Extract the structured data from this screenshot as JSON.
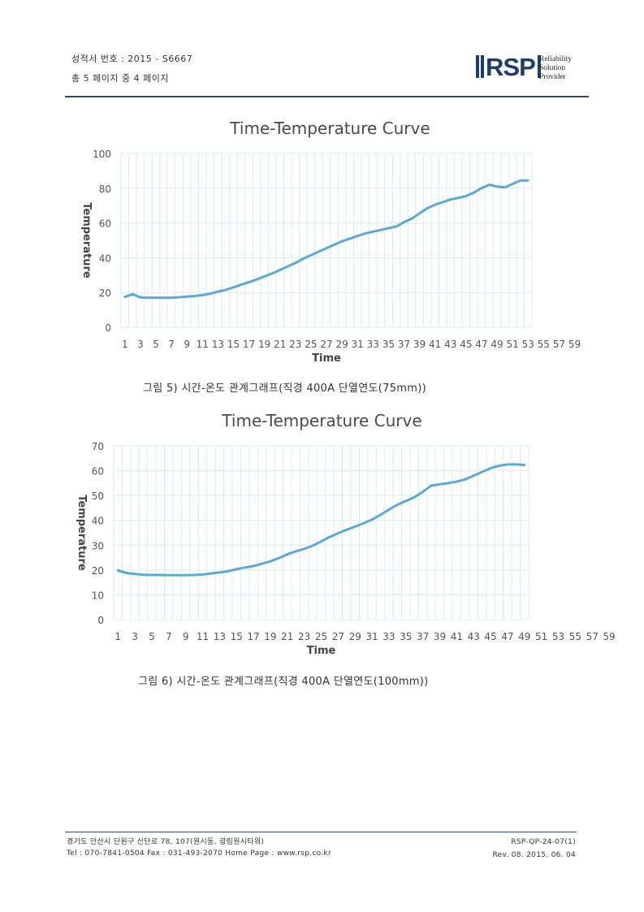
{
  "header": {
    "cert_number": "성적서 번호 : 2015 - S6667",
    "page_info": "총 5 페이지 중 4 페이지",
    "logo_mark": "RSP",
    "logo_lines": [
      "Reliability",
      "Solution",
      "Provider"
    ]
  },
  "captions": {
    "figure5": "그림 5) 시간-온도 관계그래프(직경 400A 단열연도(75mm))",
    "figure6": "그림 6) 시간-온도 관계그래프(직경 400A 단열연도(100mm))"
  },
  "footer": {
    "address": "경기도 안산시 단원구 산단로 78, 107(원시동, 광림원시타워)",
    "contact": "Tel : 070-7841-0504 Fax : 031-493-2070 Home Page : www.rsp.co.kr",
    "doc_code": "RSP-QP-24-07(1)",
    "revision": "Rev. 08. 2015. 06. 04"
  },
  "colors": {
    "line": "#5aaad6",
    "grid": "#dce9f2",
    "rule": "#2c4a78"
  },
  "chart_data": [
    {
      "type": "line",
      "title": "Time-Temperature Curve",
      "xlabel": "Time",
      "ylabel": "Temperature",
      "ylim": [
        0,
        100
      ],
      "yticks": [
        0,
        20,
        40,
        60,
        80,
        100
      ],
      "xticks": [
        1,
        3,
        5,
        7,
        9,
        11,
        13,
        15,
        17,
        19,
        21,
        23,
        25,
        27,
        29,
        31,
        33,
        35,
        37,
        39,
        41,
        43,
        45,
        47,
        49,
        51,
        53,
        55,
        57,
        59
      ],
      "grid": true,
      "x_start": 1,
      "values": [
        17.5,
        19,
        17.2,
        17,
        17,
        17,
        17,
        17.3,
        17.6,
        18,
        18.5,
        19.3,
        20.5,
        21.5,
        23,
        24.5,
        26,
        27.5,
        29.3,
        31,
        33,
        35,
        37,
        39.5,
        41.5,
        43.5,
        45.5,
        47.5,
        49.5,
        51,
        52.5,
        54,
        55,
        56,
        57,
        58,
        60.5,
        62.5,
        65.5,
        68.5,
        70.5,
        72,
        73.5,
        74.5,
        75.5,
        77.5,
        80,
        82,
        81,
        80.5,
        82.5,
        84.5,
        84.5
      ]
    },
    {
      "type": "line",
      "title": "Time-Temperature Curve",
      "xlabel": "Time",
      "ylabel": "Temperature",
      "ylim": [
        0,
        70
      ],
      "yticks": [
        0,
        10,
        20,
        30,
        40,
        50,
        60,
        70
      ],
      "xticks": [
        1,
        3,
        5,
        7,
        9,
        11,
        13,
        15,
        17,
        19,
        21,
        23,
        25,
        27,
        29,
        31,
        33,
        35,
        37,
        39,
        41,
        43,
        45,
        47,
        49,
        51,
        53,
        55,
        57,
        59
      ],
      "grid": true,
      "x_start": 1,
      "values": [
        19.8,
        18.8,
        18.4,
        18.1,
        18,
        18,
        17.9,
        17.9,
        17.9,
        18,
        18.2,
        18.6,
        19,
        19.5,
        20.3,
        21,
        21.6,
        22.5,
        23.5,
        24.8,
        26.3,
        27.5,
        28.5,
        29.8,
        31.5,
        33.3,
        34.8,
        36.2,
        37.5,
        38.8,
        40.3,
        42.2,
        44.3,
        46.3,
        47.8,
        49.3,
        51.5,
        54,
        54.5,
        55,
        55.6,
        56.5,
        58,
        59.5,
        61,
        62,
        62.5,
        62.5,
        62.3
      ]
    }
  ]
}
